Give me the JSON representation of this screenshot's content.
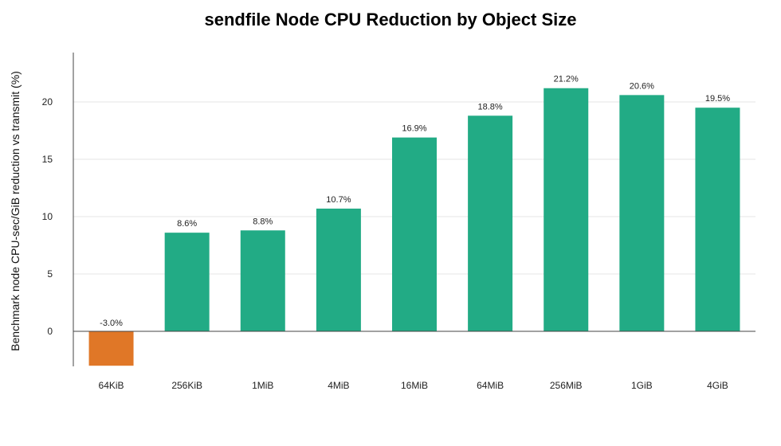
{
  "chart_data": {
    "type": "bar",
    "title": "sendfile Node CPU Reduction by Object Size",
    "xlabel": "",
    "ylabel": "Benchmark node CPU-sec/GiB reduction vs transmit (%)",
    "categories": [
      "64KiB",
      "256KiB",
      "1MiB",
      "4MiB",
      "16MiB",
      "64MiB",
      "256MiB",
      "1GiB",
      "4GiB"
    ],
    "values": [
      -3.0,
      8.6,
      8.8,
      10.7,
      16.9,
      18.8,
      21.2,
      20.6,
      19.5
    ],
    "data_labels": [
      "-3.0%",
      "8.6%",
      "8.8%",
      "10.7%",
      "16.9%",
      "18.8%",
      "21.2%",
      "20.6%",
      "19.5%"
    ],
    "yticks": [
      0,
      5,
      10,
      15,
      20
    ],
    "ylim": [
      -3.2,
      24.3
    ],
    "grid": true,
    "colors": {
      "positive": "#22ab85",
      "negative": "#e07727"
    }
  }
}
